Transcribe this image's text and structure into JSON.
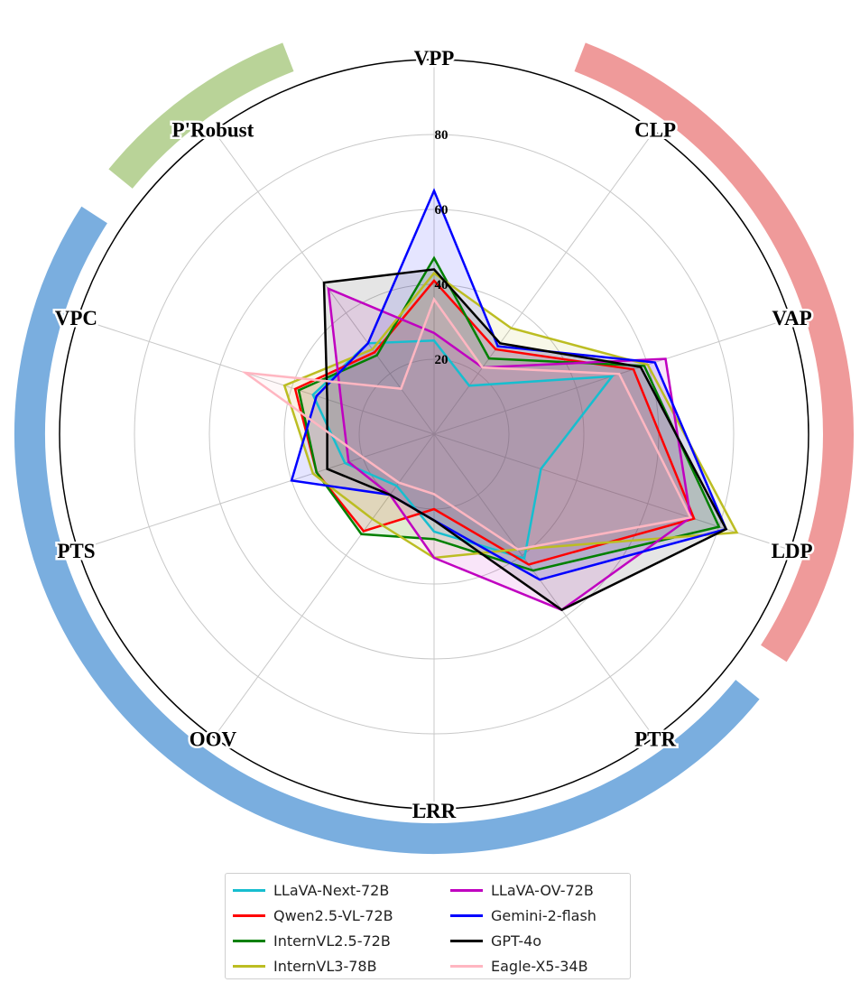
{
  "chart_data": {
    "type": "radar",
    "axes": [
      "VPP",
      "CLP",
      "VAP",
      "LDP",
      "PTR",
      "LRR",
      "OOV",
      "PTS",
      "VPC",
      "P'Robust"
    ],
    "rlim": [
      0,
      100
    ],
    "r_ticks": [
      20,
      40,
      60,
      80
    ],
    "r_tick_labels": [
      "20",
      "40",
      "60",
      "80"
    ],
    "grid": true,
    "legend_position": "bottom",
    "category_bands": [
      {
        "color": "#ef9a9a",
        "axes": [
          "CLP",
          "VAP",
          "LDP"
        ]
      },
      {
        "color": "#7aaedf",
        "axes": [
          "PTR",
          "LRR",
          "OOV",
          "PTS",
          "VPC"
        ]
      },
      {
        "color": "#b9d398",
        "axes": [
          "P'Robust"
        ]
      }
    ],
    "series": [
      {
        "name": "LLaVA-Next-72B",
        "color": "#17becf",
        "values": [
          25,
          16,
          50,
          30,
          41,
          26,
          17,
          25,
          34,
          30
        ]
      },
      {
        "name": "Qwen2.5-VL-72B",
        "color": "#ff0000",
        "values": [
          41,
          28,
          56,
          73,
          43,
          20,
          32,
          33,
          39,
          27
        ]
      },
      {
        "name": "InternVL2.5-72B",
        "color": "#008000",
        "values": [
          47,
          25,
          59,
          80,
          45,
          28,
          33,
          33,
          38,
          26
        ]
      },
      {
        "name": "InternVL3-78B",
        "color": "#bcbd22",
        "values": [
          43,
          35,
          60,
          85,
          38,
          33,
          28,
          34,
          42,
          28
        ]
      },
      {
        "name": "LLaVA-OV-72B",
        "color": "#c000c0",
        "values": [
          27,
          22,
          65,
          72,
          58,
          33,
          20,
          24,
          26,
          48
        ]
      },
      {
        "name": "Gemini-2-flash",
        "color": "#0000ff",
        "values": [
          65,
          29,
          62,
          82,
          48,
          23,
          20,
          40,
          33,
          30
        ]
      },
      {
        "name": "GPT-4o",
        "color": "#000000",
        "values": [
          44,
          30,
          58,
          82,
          58,
          23,
          20,
          30,
          30,
          50
        ]
      },
      {
        "name": "Eagle-X5-34B",
        "color": "#ffb6c1",
        "values": [
          36,
          22,
          52,
          72,
          38,
          16,
          16,
          20,
          53,
          15
        ]
      }
    ]
  }
}
